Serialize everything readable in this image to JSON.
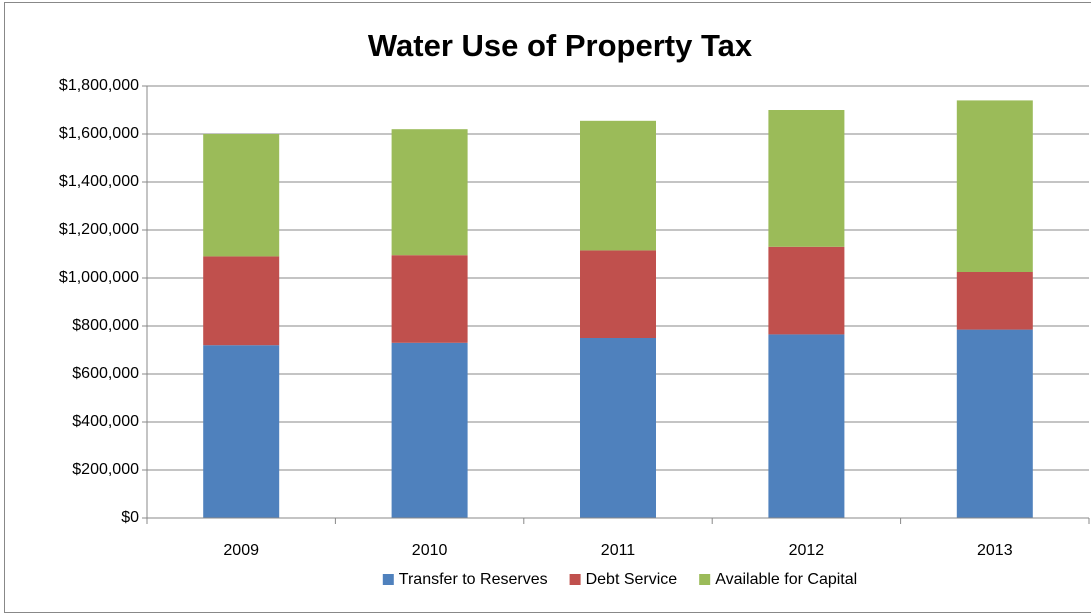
{
  "chart_data": {
    "type": "stacked_bar",
    "title": "Water Use of Property Tax",
    "categories": [
      "2009",
      "2010",
      "2011",
      "2012",
      "2013"
    ],
    "series": [
      {
        "name": "Transfer to Reserves",
        "color": "#4f81bd",
        "values": [
          720000,
          730000,
          750000,
          765000,
          785000
        ]
      },
      {
        "name": "Debt Service",
        "color": "#c0504d",
        "values": [
          370000,
          365000,
          365000,
          365000,
          240000
        ]
      },
      {
        "name": "Available for Capital",
        "color": "#9bbb59",
        "values": [
          510000,
          525000,
          540000,
          570000,
          715000
        ]
      }
    ],
    "ylim": [
      0,
      1800000
    ],
    "yticks": [
      {
        "value": 0,
        "label": "$0"
      },
      {
        "value": 200000,
        "label": "$200,000"
      },
      {
        "value": 400000,
        "label": "$400,000"
      },
      {
        "value": 600000,
        "label": "$600,000"
      },
      {
        "value": 800000,
        "label": "$800,000"
      },
      {
        "value": 1000000,
        "label": "$1,000,000"
      },
      {
        "value": 1200000,
        "label": "$1,200,000"
      },
      {
        "value": 1400000,
        "label": "$1,400,000"
      },
      {
        "value": 1600000,
        "label": "$1,600,000"
      },
      {
        "value": 1800000,
        "label": "$1,800,000"
      }
    ],
    "grid": true,
    "legend": "bottom"
  }
}
